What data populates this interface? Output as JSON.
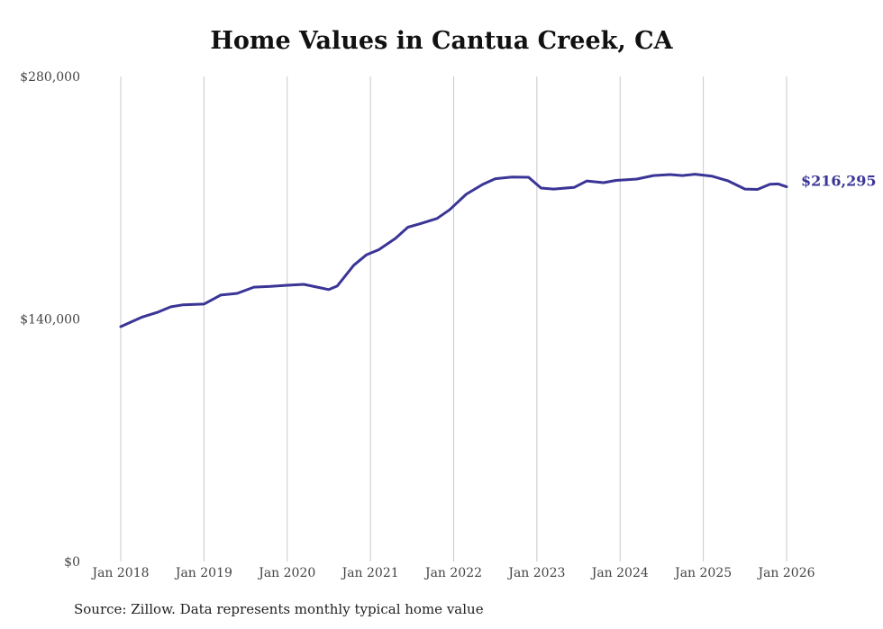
{
  "chart_data": {
    "type": "line",
    "title": "Home Values in Cantua Creek, CA",
    "xlabel": "",
    "ylabel": "",
    "ylim": [
      0,
      280000
    ],
    "xlim": [
      2018,
      2026
    ],
    "yticks": [
      0,
      140000,
      280000
    ],
    "ytick_labels": [
      "$0",
      "$140,000",
      "$280,000"
    ],
    "xticks": [
      2018,
      2019,
      2020,
      2021,
      2022,
      2023,
      2024,
      2025,
      2026
    ],
    "xtick_labels": [
      "Jan 2018",
      "Jan 2019",
      "Jan 2020",
      "Jan 2021",
      "Jan 2022",
      "Jan 2023",
      "Jan 2024",
      "Jan 2025",
      "Jan 2026"
    ],
    "grid": "vertical",
    "color": "#3a3596",
    "end_label": "$216,295",
    "series": [
      {
        "name": "Typical home value",
        "x": [
          2018.0,
          2018.25,
          2018.45,
          2018.6,
          2018.75,
          2019.0,
          2019.2,
          2019.4,
          2019.6,
          2019.8,
          2020.0,
          2020.2,
          2020.4,
          2020.5,
          2020.6,
          2020.8,
          2020.95,
          2021.1,
          2021.3,
          2021.45,
          2021.6,
          2021.8,
          2021.95,
          2022.15,
          2022.35,
          2022.5,
          2022.7,
          2022.9,
          2023.05,
          2023.2,
          2023.45,
          2023.6,
          2023.8,
          2023.95,
          2024.2,
          2024.4,
          2024.6,
          2024.75,
          2024.9,
          2025.1,
          2025.3,
          2025.5,
          2025.65,
          2025.8,
          2025.9,
          2026.0
        ],
        "values": [
          135600,
          141000,
          144000,
          147000,
          148200,
          148600,
          153800,
          154800,
          158400,
          158800,
          159500,
          160000,
          158000,
          157000,
          159000,
          171000,
          177000,
          180000,
          186500,
          193000,
          195000,
          198000,
          203000,
          212000,
          217700,
          221000,
          222000,
          221800,
          215600,
          215000,
          216000,
          219700,
          218700,
          220000,
          220800,
          222800,
          223400,
          222800,
          223600,
          222500,
          219700,
          215000,
          214800,
          217800,
          218000,
          216295
        ]
      }
    ]
  },
  "source": "Source: Zillow. Data represents monthly typical home value"
}
